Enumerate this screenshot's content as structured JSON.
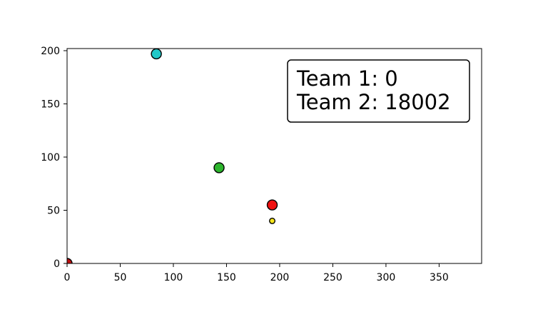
{
  "chart_data": {
    "type": "scatter",
    "title": "",
    "xlabel": "",
    "ylabel": "",
    "xlim": [
      0,
      390
    ],
    "ylim": [
      0,
      202
    ],
    "x_ticks": [
      0,
      50,
      100,
      150,
      200,
      250,
      300,
      350
    ],
    "y_ticks": [
      0,
      50,
      100,
      150,
      200
    ],
    "grid": false,
    "points": [
      {
        "x": 84,
        "y": 197,
        "color": "#22c8c8",
        "size": "large"
      },
      {
        "x": 143,
        "y": 90,
        "color": "#2db52d",
        "size": "large"
      },
      {
        "x": 193,
        "y": 55,
        "color": "#f01010",
        "size": "large"
      },
      {
        "x": 193,
        "y": 40,
        "color": "#f5e51b",
        "size": "small"
      },
      {
        "x": 0,
        "y": 0,
        "color": "#c01010",
        "size": "large"
      }
    ]
  },
  "scoreboard": {
    "team1": "Team 1: 0",
    "team2": "Team 2: 18002"
  }
}
